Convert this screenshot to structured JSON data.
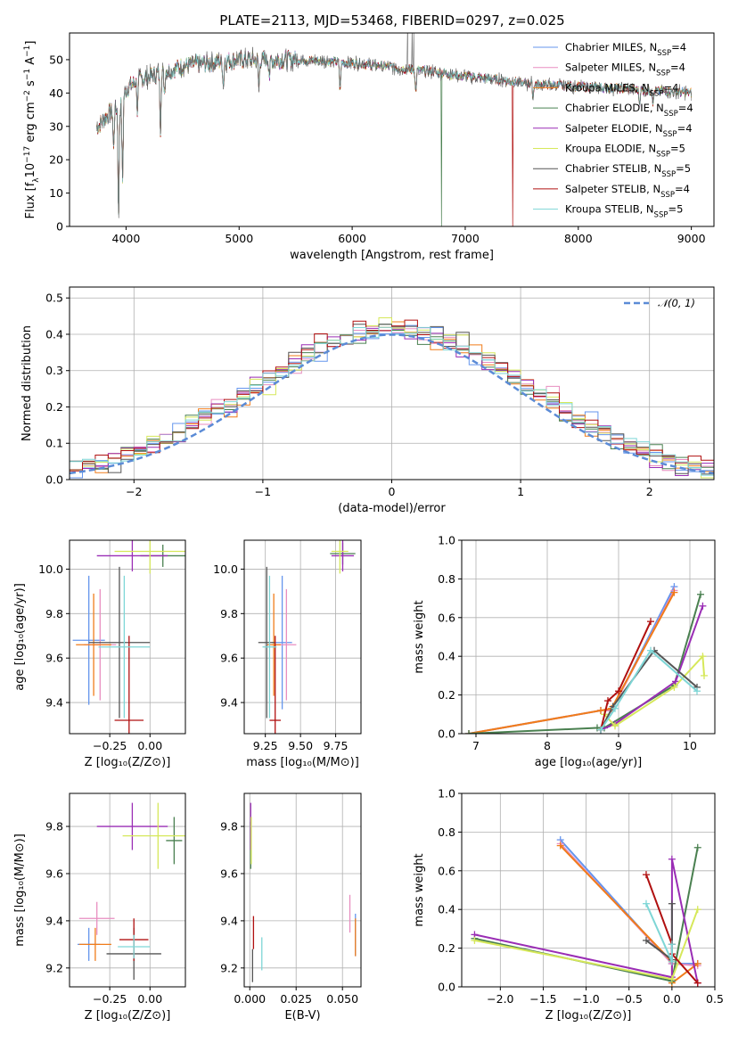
{
  "figure": {
    "title": "PLATE=2113, MJD=53468, FIBERID=0297, z=0.025"
  },
  "series_colors": [
    "#6495ed",
    "#e88ec0",
    "#f07c1a",
    "#4a8050",
    "#9a2db5",
    "#d6e85a",
    "#555555",
    "#b01010",
    "#7ed6d6"
  ],
  "chart_data": [
    {
      "id": "spectrum",
      "type": "line",
      "xlabel": "wavelength [Angstrom, rest frame]",
      "ylabel": "Flux [f_λ10⁻¹⁷ erg cm⁻² s⁻¹ Å⁻¹]",
      "ylabel_parts": [
        "Flux [f",
        "λ",
        "10",
        "−17",
        " erg cm",
        "−2",
        " s",
        "−1",
        " A",
        "−1",
        "]"
      ],
      "xlim": [
        3500,
        9200
      ],
      "ylim": [
        0,
        58
      ],
      "xticks": [
        4000,
        5000,
        6000,
        7000,
        8000,
        9000
      ],
      "yticks": [
        0,
        10,
        20,
        30,
        40,
        50
      ],
      "grid": false,
      "legend": "top-right",
      "series_names": [
        {
          "pre": "Chabrier MILES, N",
          "sub": "SSP",
          "post": "=4"
        },
        {
          "pre": "Salpeter MILES, N",
          "sub": "SSP",
          "post": "=4"
        },
        {
          "pre": "Kroupa MILES, N",
          "sub": "SSP",
          "post": "=4"
        },
        {
          "pre": "Chabrier ELODIE, N",
          "sub": "SSP",
          "post": "=4"
        },
        {
          "pre": "Salpeter ELODIE, N",
          "sub": "SSP",
          "post": "=4"
        },
        {
          "pre": "Kroupa ELODIE, N",
          "sub": "SSP",
          "post": "=5"
        },
        {
          "pre": "Chabrier STELIB, N",
          "sub": "SSP",
          "post": "=5"
        },
        {
          "pre": "Salpeter STELIB, N",
          "sub": "SSP",
          "post": "=4"
        },
        {
          "pre": "Kroupa STELIB, N",
          "sub": "SSP",
          "post": "=5"
        }
      ],
      "continuum": {
        "x": [
          3750,
          3850,
          3950,
          4000,
          4100,
          4300,
          4500,
          4700,
          5000,
          5200,
          5500,
          5800,
          6000,
          6300,
          6500,
          6700,
          7000,
          7300,
          7500,
          7700,
          8000,
          8300,
          8500,
          8800,
          9000
        ],
        "y": [
          30,
          34,
          36,
          41,
          44,
          46,
          48,
          49,
          50,
          50,
          50,
          49.5,
          49,
          48,
          47,
          46.5,
          45,
          44,
          43,
          42.5,
          42,
          41.5,
          41,
          40.5,
          40
        ]
      },
      "features": [
        {
          "x": 3934,
          "depth": 34
        },
        {
          "x": 3969,
          "depth": 25
        },
        {
          "x": 3890,
          "depth": 12
        },
        {
          "x": 4101,
          "depth": 10
        },
        {
          "x": 4304,
          "depth": 17
        },
        {
          "x": 4340,
          "depth": 6
        },
        {
          "x": 4861,
          "depth": 7
        },
        {
          "x": 5175,
          "depth": 9
        },
        {
          "x": 5270,
          "depth": 5
        },
        {
          "x": 5893,
          "depth": 9
        },
        {
          "x": 6563,
          "depth": 7
        },
        {
          "x": 7600,
          "depth": 4
        },
        {
          "x": 8542,
          "depth": 4
        },
        {
          "x": 8662,
          "depth": 4
        }
      ],
      "drops": [
        {
          "x": 6790,
          "series": 3
        },
        {
          "x": 7420,
          "series": 7
        }
      ],
      "emission": [
        {
          "x": 6490,
          "height": 62
        },
        {
          "x": 6530,
          "height": 60
        },
        {
          "x": 6545,
          "height": 58
        }
      ]
    },
    {
      "id": "residuals",
      "type": "histogram",
      "xlabel": "(data-model)/error",
      "ylabel": "Normed distribution",
      "xlim": [
        -2.5,
        2.5
      ],
      "ylim": [
        0,
        0.53
      ],
      "xticks": [
        -2,
        -1,
        0,
        1,
        2
      ],
      "yticks": [
        0.0,
        0.1,
        0.2,
        0.3,
        0.4,
        0.5
      ],
      "bins": 50,
      "grid": true,
      "legend": "top-right",
      "reference": {
        "label": "𝒩(0, 1)",
        "mean": 0,
        "sigma": 1
      }
    },
    {
      "id": "age-vs-Z",
      "type": "scatter",
      "xlabel": "Z [log₁₀(Z/Z⊙)]",
      "ylabel": "age  [log₁₀(age/yr)]",
      "xlim": [
        -0.5,
        0.22
      ],
      "ylim": [
        9.26,
        10.13
      ],
      "xticks": [
        -0.25,
        0.0
      ],
      "yticks": [
        9.4,
        9.6,
        9.8,
        10.0
      ],
      "grid": true,
      "points": [
        {
          "s": 0,
          "x": -0.38,
          "xerr": 0.1,
          "y": 9.68,
          "yerr": 0.29
        },
        {
          "s": 1,
          "x": -0.31,
          "xerr": 0.1,
          "y": 9.66,
          "yerr": 0.25
        },
        {
          "s": 2,
          "x": -0.35,
          "xerr": 0.11,
          "y": 9.66,
          "yerr": 0.23
        },
        {
          "s": 3,
          "x": 0.08,
          "xerr": 0.14,
          "y": 10.06,
          "yerr": 0.05
        },
        {
          "s": 4,
          "x": -0.11,
          "xerr": 0.22,
          "y": 10.06,
          "yerr": 0.07
        },
        {
          "s": 5,
          "x": 0.0,
          "xerr": 0.22,
          "y": 10.08,
          "yerr": 0.1
        },
        {
          "s": 6,
          "x": -0.19,
          "xerr": 0.19,
          "y": 9.67,
          "yerr": 0.34
        },
        {
          "s": 7,
          "x": -0.13,
          "xerr": 0.09,
          "y": 9.32,
          "yerr": 0.38
        },
        {
          "s": 8,
          "x": -0.16,
          "xerr": 0.16,
          "y": 9.65,
          "yerr": 0.32
        }
      ]
    },
    {
      "id": "age-vs-mass",
      "type": "scatter",
      "xlabel": "mass [log₁₀(M/M⊙)]",
      "ylabel": "",
      "xlim": [
        9.1,
        9.93
      ],
      "ylim": [
        9.26,
        10.13
      ],
      "xticks": [
        9.25,
        9.5,
        9.75
      ],
      "yticks": [
        9.4,
        9.6,
        9.8,
        10.0
      ],
      "grid": true,
      "points": [
        {
          "s": 0,
          "x": 9.37,
          "xerr": 0.07,
          "y": 9.67,
          "yerr": 0.3
        },
        {
          "s": 1,
          "x": 9.4,
          "xerr": 0.07,
          "y": 9.66,
          "yerr": 0.25
        },
        {
          "s": 2,
          "x": 9.31,
          "xerr": 0.05,
          "y": 9.66,
          "yerr": 0.23
        },
        {
          "s": 3,
          "x": 9.8,
          "xerr": 0.09,
          "y": 10.07,
          "yerr": 0.05
        },
        {
          "s": 4,
          "x": 9.8,
          "xerr": 0.08,
          "y": 10.06,
          "yerr": 0.07
        },
        {
          "s": 5,
          "x": 9.78,
          "xerr": 0.06,
          "y": 10.08,
          "yerr": 0.1
        },
        {
          "s": 6,
          "x": 9.26,
          "xerr": 0.06,
          "y": 9.67,
          "yerr": 0.34
        },
        {
          "s": 7,
          "x": 9.32,
          "xerr": 0.04,
          "y": 9.32,
          "yerr": 0.38
        },
        {
          "s": 8,
          "x": 9.28,
          "xerr": 0.05,
          "y": 9.65,
          "yerr": 0.32
        }
      ]
    },
    {
      "id": "weight-vs-age",
      "type": "line",
      "xlabel": "age  [log₁₀(age/yr)]",
      "ylabel": "mass weight",
      "xlim": [
        6.8,
        10.35
      ],
      "ylim": [
        0,
        1
      ],
      "xticks": [
        7,
        8,
        9,
        10
      ],
      "yticks": [
        0.0,
        0.2,
        0.4,
        0.6,
        0.8,
        1.0
      ],
      "grid": true,
      "series": [
        {
          "s": 0,
          "x": [
            6.9,
            8.75,
            8.9,
            9.78
          ],
          "y": [
            0.0,
            0.12,
            0.12,
            0.76
          ]
        },
        {
          "s": 1,
          "x": [
            6.9,
            8.75,
            8.9,
            9.78
          ],
          "y": [
            0.0,
            0.12,
            0.12,
            0.74
          ]
        },
        {
          "s": 2,
          "x": [
            6.9,
            8.75,
            8.9,
            9.78
          ],
          "y": [
            0.0,
            0.12,
            0.13,
            0.73
          ]
        },
        {
          "s": 3,
          "x": [
            6.9,
            8.7,
            8.8,
            9.78,
            10.15
          ],
          "y": [
            0.0,
            0.03,
            0.03,
            0.25,
            0.72
          ]
        },
        {
          "s": 4,
          "x": [
            8.75,
            8.95,
            9.8,
            10.18
          ],
          "y": [
            0.02,
            0.05,
            0.27,
            0.66
          ]
        },
        {
          "s": 5,
          "x": [
            8.8,
            8.95,
            9.78,
            10.18,
            10.2
          ],
          "y": [
            0.1,
            0.04,
            0.24,
            0.4,
            0.3
          ]
        },
        {
          "s": 6,
          "x": [
            8.75,
            8.92,
            9.5,
            10.1
          ],
          "y": [
            0.02,
            0.14,
            0.43,
            0.24
          ]
        },
        {
          "s": 7,
          "x": [
            8.75,
            8.85,
            9.0,
            9.45
          ],
          "y": [
            0.02,
            0.17,
            0.22,
            0.58
          ]
        },
        {
          "s": 8,
          "x": [
            8.75,
            8.95,
            9.45,
            10.1
          ],
          "y": [
            0.02,
            0.13,
            0.43,
            0.22
          ]
        }
      ]
    },
    {
      "id": "mass-vs-Z",
      "type": "scatter",
      "xlabel": "Z [log₁₀(Z/Z⊙)]",
      "ylabel": "mass [log₁₀(M/M⊙)]",
      "xlim": [
        -0.5,
        0.22
      ],
      "ylim": [
        9.12,
        9.94
      ],
      "xticks": [
        -0.25,
        0.0
      ],
      "yticks": [
        9.2,
        9.4,
        9.6,
        9.8
      ],
      "grid": true,
      "points": [
        {
          "s": 0,
          "x": -0.38,
          "xerr": 0.07,
          "y": 9.3,
          "yerr": 0.07
        },
        {
          "s": 1,
          "x": -0.33,
          "xerr": 0.11,
          "y": 9.41,
          "yerr": 0.07
        },
        {
          "s": 2,
          "x": -0.34,
          "xerr": 0.1,
          "y": 9.3,
          "yerr": 0.07
        },
        {
          "s": 3,
          "x": 0.15,
          "xerr": 0.05,
          "y": 9.74,
          "yerr": 0.1
        },
        {
          "s": 4,
          "x": -0.11,
          "xerr": 0.22,
          "y": 9.8,
          "yerr": 0.1
        },
        {
          "s": 5,
          "x": 0.05,
          "xerr": 0.22,
          "y": 9.76,
          "yerr": 0.14
        },
        {
          "s": 6,
          "x": -0.1,
          "xerr": 0.17,
          "y": 9.26,
          "yerr": 0.11
        },
        {
          "s": 7,
          "x": -0.1,
          "xerr": 0.09,
          "y": 9.32,
          "yerr": 0.09
        },
        {
          "s": 8,
          "x": -0.1,
          "xerr": 0.1,
          "y": 9.29,
          "yerr": 0.05
        }
      ]
    },
    {
      "id": "mass-vs-EBV",
      "type": "scatter",
      "xlabel": "E(B-V)",
      "ylabel": "",
      "xlim": [
        -0.003,
        0.06
      ],
      "ylim": [
        9.12,
        9.94
      ],
      "xticks": [
        0.0,
        0.025,
        0.05
      ],
      "yticks": [
        9.2,
        9.4,
        9.6,
        9.8
      ],
      "grid": true,
      "points": [
        {
          "s": 0,
          "x": 0.057,
          "xerr": 0,
          "y": 9.34,
          "yerr": 0.09
        },
        {
          "s": 1,
          "x": 0.054,
          "xerr": 0,
          "y": 9.43,
          "yerr": 0.08
        },
        {
          "s": 2,
          "x": 0.057,
          "xerr": 0,
          "y": 9.33,
          "yerr": 0.08
        },
        {
          "s": 3,
          "x": 0.0005,
          "xerr": 0,
          "y": 9.72,
          "yerr": 0.1
        },
        {
          "s": 4,
          "x": 0.0005,
          "xerr": 0,
          "y": 9.8,
          "yerr": 0.1
        },
        {
          "s": 5,
          "x": 0.0008,
          "xerr": 0,
          "y": 9.74,
          "yerr": 0.1
        },
        {
          "s": 6,
          "x": 0.0015,
          "xerr": 0,
          "y": 9.21,
          "yerr": 0.07
        },
        {
          "s": 7,
          "x": 0.002,
          "xerr": 0,
          "y": 9.35,
          "yerr": 0.07
        },
        {
          "s": 8,
          "x": 0.0065,
          "xerr": 0,
          "y": 9.26,
          "yerr": 0.07
        }
      ]
    },
    {
      "id": "weight-vs-Z",
      "type": "line",
      "xlabel": "Z [log₁₀(Z/Z⊙)]",
      "ylabel": "mass weight",
      "xlim": [
        -2.45,
        0.5
      ],
      "ylim": [
        0,
        1
      ],
      "xticks": [
        -2.0,
        -1.5,
        -1.0,
        -0.5,
        0.0,
        0.5
      ],
      "yticks": [
        0.0,
        0.2,
        0.4,
        0.6,
        0.8,
        1.0
      ],
      "grid": true,
      "series": [
        {
          "s": 0,
          "x": [
            -1.3,
            0.0,
            0.0,
            0.3
          ],
          "y": [
            0.76,
            0.12,
            0.12,
            0.12
          ]
        },
        {
          "s": 1,
          "x": [
            -1.3,
            0.0,
            0.0,
            0.3
          ],
          "y": [
            0.74,
            0.12,
            0.12,
            0.11
          ]
        },
        {
          "s": 2,
          "x": [
            -1.3,
            0.0,
            0.0,
            0.3
          ],
          "y": [
            0.73,
            0.13,
            0.02,
            0.12
          ]
        },
        {
          "s": 3,
          "x": [
            -2.3,
            0.0,
            0.0,
            0.3
          ],
          "y": [
            0.25,
            0.03,
            0.03,
            0.72
          ]
        },
        {
          "s": 4,
          "x": [
            -2.3,
            0.0,
            0.0,
            0.3
          ],
          "y": [
            0.27,
            0.05,
            0.66,
            0.02
          ]
        },
        {
          "s": 5,
          "x": [
            -2.3,
            0.0,
            0.3
          ],
          "y": [
            0.24,
            0.04,
            0.4
          ]
        },
        {
          "s": 6,
          "x": [
            -0.3,
            0.0,
            0.0
          ],
          "y": [
            0.24,
            0.14,
            0.43
          ]
        },
        {
          "s": 7,
          "x": [
            -0.3,
            0.0,
            0.0,
            0.3
          ],
          "y": [
            0.58,
            0.22,
            0.17,
            0.02
          ]
        },
        {
          "s": 8,
          "x": [
            -0.3,
            0.0,
            0.0
          ],
          "y": [
            0.43,
            0.13,
            0.22
          ]
        }
      ]
    }
  ]
}
